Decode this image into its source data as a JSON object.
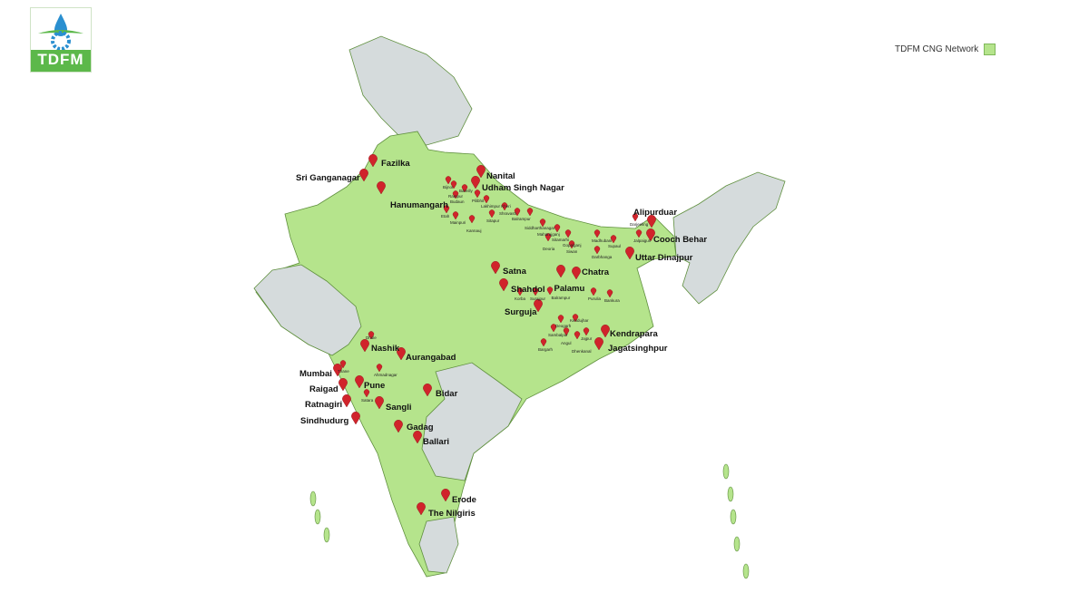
{
  "logo": {
    "text": "TDFM"
  },
  "legend": {
    "label": "TDFM CNG Network",
    "color": "#b5e48c"
  },
  "colors": {
    "network_region": "#b5e48c",
    "other_region": "#d5dbdc",
    "border": "#5f8f3e",
    "pin": "#d0242b"
  },
  "major_locations": [
    "Fazilka",
    "Sri Ganganagar",
    "Hanumangarh",
    "Nanital",
    "Udham Singh Nagar",
    "Alipurduar",
    "Cooch Behar",
    "Uttar Dinajpur",
    "Satna",
    "Shahdol",
    "Palamu",
    "Chatra",
    "Surguja",
    "Kendrapara",
    "Jagatsinghpur",
    "Nashik",
    "Aurangabad",
    "Mumbai",
    "Raigad",
    "Pune",
    "Ratnagiri",
    "Sangli",
    "Sindhudurg",
    "Bidar",
    "Gadag",
    "Ballari",
    "Erode",
    "The Nilgiris"
  ],
  "minor_locations": [
    "Bijnor",
    "Rampur",
    "Bareilly",
    "Budaun",
    "Pilibhit",
    "Lakhimpur Kheri",
    "Etah",
    "Mainpuri",
    "Kannauj",
    "Sitapur",
    "Shravasti",
    "Balrampur",
    "Siddharthanagar",
    "Maharajganj",
    "Sitamarhi",
    "Deoria",
    "Gopalganj",
    "Siwan",
    "Madhubani",
    "Supaul",
    "Darbhanga",
    "Darjeeling",
    "Jalpaiguri",
    "Korba",
    "Surajpur",
    "Balrampur",
    "Purulia",
    "Bankura",
    "Deogarh",
    "Kendujhar",
    "Sambalpur",
    "Angul",
    "Jajpur",
    "Dhenkanal",
    "Bargarh",
    "Dhule",
    "Thane",
    "Ahmadnagar",
    "Satara"
  ]
}
